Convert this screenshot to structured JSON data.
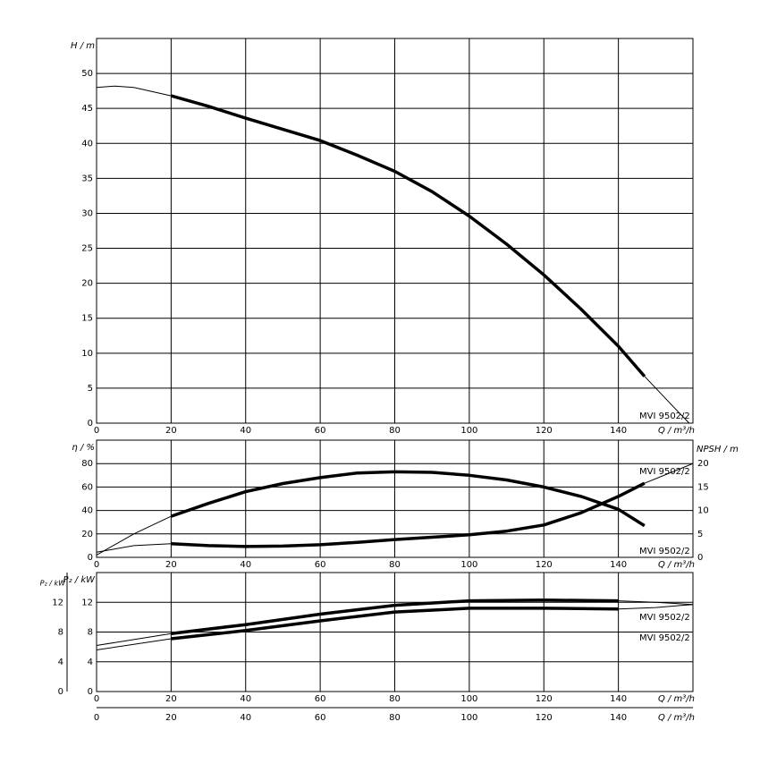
{
  "chart_data": [
    {
      "type": "line",
      "x_label": "Q / m³/h",
      "y_label": "H / m",
      "xlim": [
        0,
        160
      ],
      "xticks": [
        0,
        20,
        40,
        60,
        80,
        100,
        120,
        140
      ],
      "ylim": [
        0,
        55
      ],
      "yticks": [
        0,
        5,
        10,
        15,
        20,
        25,
        30,
        35,
        40,
        45,
        50
      ],
      "grid": true,
      "operating_range": [
        20,
        147
      ],
      "x": [
        0,
        5,
        10,
        20,
        30,
        40,
        50,
        60,
        70,
        80,
        90,
        100,
        110,
        120,
        130,
        140,
        147,
        155,
        159
      ],
      "series": [
        {
          "label": "MVI 9502/2",
          "color": "#000000",
          "values": [
            48,
            48.2,
            48,
            46.8,
            45.3,
            43.6,
            42,
            40.4,
            38.3,
            36,
            33.1,
            29.6,
            25.6,
            21.2,
            16.3,
            11,
            6.7,
            2.2,
            0
          ]
        }
      ]
    },
    {
      "type": "line",
      "x_label": "Q / m³/h",
      "y_label": "η / %",
      "y2_label": "NPSH / m",
      "xlim": [
        0,
        160
      ],
      "xticks": [
        0,
        20,
        40,
        60,
        80,
        100,
        120,
        140
      ],
      "ylim": [
        0,
        100
      ],
      "yticks": [
        0,
        20,
        40,
        60,
        80
      ],
      "y2lim": [
        0,
        25
      ],
      "y2ticks": [
        0,
        5,
        10,
        15,
        20
      ],
      "grid": true,
      "operating_range": [
        20,
        147
      ],
      "x": [
        0,
        10,
        20,
        30,
        40,
        50,
        60,
        70,
        80,
        90,
        100,
        110,
        120,
        130,
        140,
        147,
        160
      ],
      "series": [
        {
          "label": "MVI 9502/2",
          "color": "#000000",
          "values": [
            2,
            20,
            35,
            46,
            56,
            63,
            68,
            72,
            73,
            72.5,
            70,
            66,
            60,
            52,
            41,
            27,
            null
          ]
        },
        {
          "label": "MVI 9502/2",
          "color": "#000000",
          "axis": "y2",
          "values": [
            1.1,
            2.5,
            2.9,
            2.5,
            2.3,
            2.4,
            2.7,
            3.2,
            3.8,
            4.3,
            4.8,
            5.6,
            6.9,
            9.5,
            13,
            15.8,
            20
          ]
        }
      ]
    },
    {
      "type": "line",
      "x_label": "Q / m³/h",
      "y_label": "P₂ / kW",
      "y2_label": "P₂ / kW",
      "xlim": [
        0,
        160
      ],
      "xticks": [
        0,
        20,
        40,
        60,
        80,
        100,
        120,
        140
      ],
      "x2ticks": [
        0,
        20,
        40,
        60,
        80,
        100,
        120,
        140
      ],
      "x2_label": "Q / m³/h",
      "ylim": [
        0,
        16
      ],
      "yticks": [
        0,
        4,
        8,
        12
      ],
      "y2lim": [
        0,
        16
      ],
      "y2ticks": [
        0,
        4,
        8,
        12
      ],
      "grid": true,
      "operating_range": [
        20,
        147
      ],
      "x": [
        0,
        20,
        40,
        60,
        80,
        100,
        120,
        140,
        150,
        160
      ],
      "series": [
        {
          "label": "MVI 9502/2",
          "color": "#000000",
          "values": [
            6.2,
            7.8,
            9.0,
            10.4,
            11.6,
            12.2,
            12.3,
            12.2,
            12.0,
            11.7
          ]
        },
        {
          "label": "MVI 9502/2",
          "color": "#000000",
          "values": [
            5.6,
            7.1,
            8.2,
            9.5,
            10.7,
            11.2,
            11.2,
            11.1,
            11.3,
            11.7
          ]
        }
      ]
    }
  ]
}
